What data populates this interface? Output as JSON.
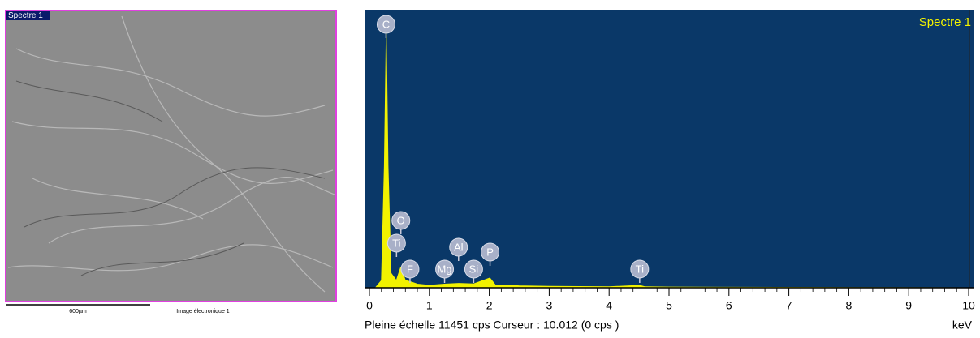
{
  "image_panel": {
    "label": "Spectre 1",
    "scale_bar": "600µm",
    "caption": "Image électronique 1"
  },
  "chart_data": {
    "type": "area",
    "title": "Spectre 1",
    "x": [
      0,
      0.1,
      0.2,
      0.25,
      0.28,
      0.31,
      0.36,
      0.45,
      0.52,
      0.6,
      0.68,
      0.8,
      1.0,
      1.25,
      1.49,
      1.74,
      2.01,
      2.1,
      2.5,
      3,
      4,
      4.51,
      4.6,
      5,
      6,
      8,
      10
    ],
    "series": [
      {
        "name": "Spectre 1",
        "color": "#f2f200",
        "values": [
          0,
          0,
          300,
          5000,
          10500,
          5000,
          600,
          300,
          830,
          300,
          250,
          150,
          100,
          150,
          180,
          160,
          400,
          120,
          80,
          60,
          40,
          100,
          40,
          30,
          20,
          10,
          0
        ]
      }
    ],
    "xlim": [
      0,
      10
    ],
    "xticks": [
      0,
      1,
      2,
      3,
      4,
      5,
      6,
      7,
      8,
      9,
      10
    ],
    "ylim": [
      0,
      11451
    ],
    "x_label": "keV",
    "footer": "Pleine échelle 11451 cps  Curseur : 10.012  (0 cps )",
    "background": "#0a3868",
    "peak_labels": [
      {
        "label": "C",
        "x": 0.277
      },
      {
        "label": "O",
        "x": 0.525
      },
      {
        "label": "Ti",
        "x": 0.452
      },
      {
        "label": "F",
        "x": 0.677
      },
      {
        "label": "Mg",
        "x": 1.254
      },
      {
        "label": "Al",
        "x": 1.487
      },
      {
        "label": "Si",
        "x": 1.74
      },
      {
        "label": "P",
        "x": 2.013
      },
      {
        "label": "Ti",
        "x": 4.51
      }
    ]
  }
}
